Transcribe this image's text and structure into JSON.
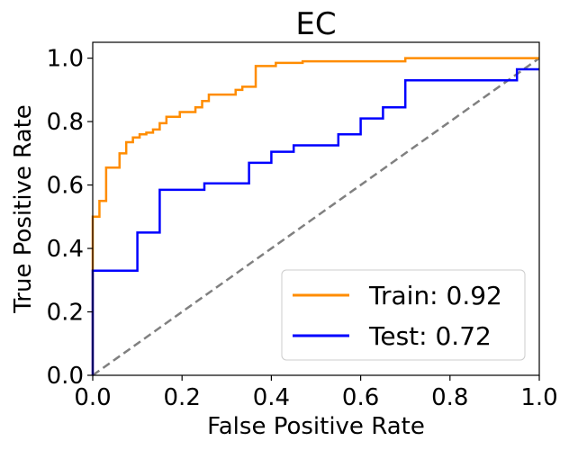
{
  "chart_data": {
    "type": "line",
    "title": "EC",
    "xlabel": "False Positive Rate",
    "ylabel": "True Positive Rate",
    "xlim": [
      0.0,
      1.0
    ],
    "ylim": [
      0.0,
      1.05
    ],
    "xticks": [
      "0.0",
      "0.2",
      "0.4",
      "0.6",
      "0.8",
      "1.0"
    ],
    "yticks": [
      "0.0",
      "0.2",
      "0.4",
      "0.6",
      "0.8",
      "1.0"
    ],
    "grid": false,
    "legend_placement": "lower-right",
    "series": [
      {
        "name": "Train: 0.92",
        "color": "#ff8c00",
        "style": "step",
        "x": [
          0.0,
          0.0,
          0.015,
          0.015,
          0.03,
          0.03,
          0.06,
          0.06,
          0.075,
          0.075,
          0.09,
          0.09,
          0.105,
          0.105,
          0.12,
          0.12,
          0.135,
          0.135,
          0.15,
          0.15,
          0.165,
          0.165,
          0.195,
          0.195,
          0.23,
          0.23,
          0.245,
          0.245,
          0.26,
          0.26,
          0.32,
          0.32,
          0.335,
          0.335,
          0.365,
          0.365,
          0.41,
          0.41,
          0.47,
          0.47,
          0.7,
          0.7,
          1.0
        ],
        "y": [
          0.0,
          0.5,
          0.5,
          0.55,
          0.55,
          0.655,
          0.655,
          0.7,
          0.7,
          0.735,
          0.735,
          0.75,
          0.75,
          0.76,
          0.76,
          0.765,
          0.765,
          0.775,
          0.775,
          0.795,
          0.795,
          0.815,
          0.815,
          0.83,
          0.83,
          0.845,
          0.845,
          0.865,
          0.865,
          0.885,
          0.885,
          0.9,
          0.9,
          0.91,
          0.91,
          0.975,
          0.975,
          0.985,
          0.985,
          0.99,
          0.99,
          1.0,
          1.0
        ]
      },
      {
        "name": "Test: 0.72",
        "color": "#0000ff",
        "style": "step",
        "x": [
          0.0,
          0.0,
          0.1,
          0.1,
          0.15,
          0.15,
          0.25,
          0.25,
          0.35,
          0.35,
          0.4,
          0.4,
          0.45,
          0.45,
          0.55,
          0.55,
          0.6,
          0.6,
          0.65,
          0.65,
          0.7,
          0.7,
          0.95,
          0.95,
          1.0
        ],
        "y": [
          0.0,
          0.33,
          0.33,
          0.45,
          0.45,
          0.585,
          0.585,
          0.605,
          0.605,
          0.67,
          0.67,
          0.705,
          0.705,
          0.725,
          0.725,
          0.76,
          0.76,
          0.81,
          0.81,
          0.845,
          0.845,
          0.93,
          0.93,
          0.965,
          0.965
        ]
      },
      {
        "name": "",
        "color": "#808080",
        "style": "dashed",
        "x": [
          0.0,
          1.0
        ],
        "y": [
          0.0,
          1.0
        ]
      }
    ]
  }
}
